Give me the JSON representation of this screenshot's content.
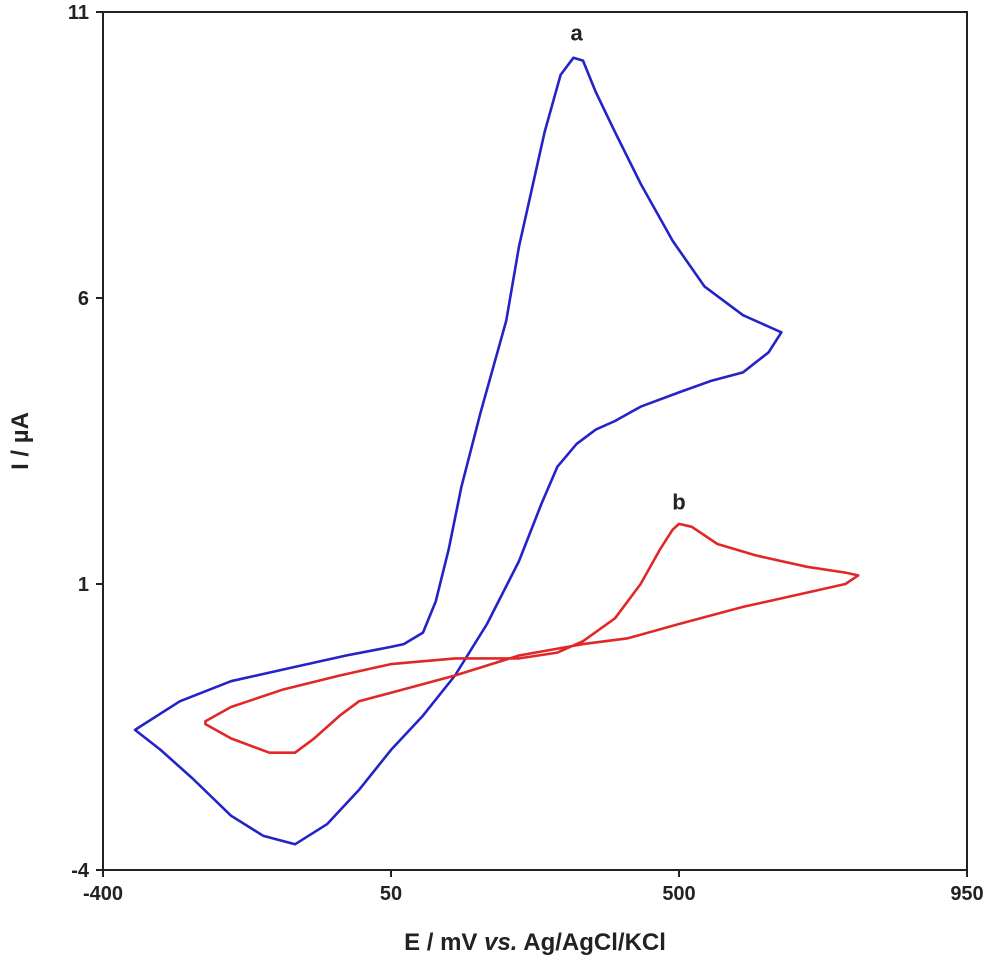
{
  "chart_data": {
    "type": "line",
    "xlabel": {
      "prefix": "E / mV ",
      "italic": "vs.",
      "suffix": " Ag/AgCl/KCl"
    },
    "ylabel": "I / µA",
    "xlim": [
      -400,
      950
    ],
    "ylim": [
      -4,
      11
    ],
    "xticks": [
      -400,
      50,
      500,
      950
    ],
    "yticks": [
      -4,
      1,
      6,
      11
    ],
    "grid": false,
    "legend": "none",
    "series": [
      {
        "label": "a",
        "color": "#2323c8",
        "points": [
          [
            -350,
            -1.55
          ],
          [
            -280,
            -1.05
          ],
          [
            -200,
            -0.7
          ],
          [
            -100,
            -0.45
          ],
          [
            -20,
            -0.25
          ],
          [
            50,
            -0.1
          ],
          [
            70,
            -0.05
          ],
          [
            100,
            0.15
          ],
          [
            120,
            0.7
          ],
          [
            140,
            1.6
          ],
          [
            160,
            2.7
          ],
          [
            190,
            4.0
          ],
          [
            215,
            5.0
          ],
          [
            230,
            5.6
          ],
          [
            250,
            6.9
          ],
          [
            270,
            7.9
          ],
          [
            290,
            8.9
          ],
          [
            315,
            9.9
          ],
          [
            335,
            10.2
          ],
          [
            350,
            10.15
          ],
          [
            370,
            9.6
          ],
          [
            400,
            8.9
          ],
          [
            440,
            8.0
          ],
          [
            490,
            7.0
          ],
          [
            540,
            6.2
          ],
          [
            600,
            5.7
          ],
          [
            650,
            5.45
          ],
          [
            660,
            5.4
          ],
          [
            640,
            5.05
          ],
          [
            600,
            4.7
          ],
          [
            550,
            4.55
          ],
          [
            500,
            4.35
          ],
          [
            440,
            4.1
          ],
          [
            400,
            3.85
          ],
          [
            370,
            3.7
          ],
          [
            340,
            3.45
          ],
          [
            310,
            3.05
          ],
          [
            285,
            2.4
          ],
          [
            250,
            1.4
          ],
          [
            200,
            0.3
          ],
          [
            150,
            -0.6
          ],
          [
            100,
            -1.3
          ],
          [
            50,
            -1.9
          ],
          [
            0,
            -2.6
          ],
          [
            -50,
            -3.2
          ],
          [
            -100,
            -3.55
          ],
          [
            -150,
            -3.4
          ],
          [
            -200,
            -3.05
          ],
          [
            -260,
            -2.4
          ],
          [
            -310,
            -1.9
          ],
          [
            -350,
            -1.55
          ]
        ]
      },
      {
        "label": "b",
        "color": "#e02828",
        "points": [
          [
            -240,
            -1.4
          ],
          [
            -200,
            -1.15
          ],
          [
            -120,
            -0.85
          ],
          [
            -30,
            -0.6
          ],
          [
            50,
            -0.4
          ],
          [
            150,
            -0.3
          ],
          [
            250,
            -0.3
          ],
          [
            310,
            -0.2
          ],
          [
            350,
            0.0
          ],
          [
            400,
            0.4
          ],
          [
            440,
            1.0
          ],
          [
            470,
            1.6
          ],
          [
            490,
            1.95
          ],
          [
            500,
            2.05
          ],
          [
            520,
            2.0
          ],
          [
            560,
            1.7
          ],
          [
            620,
            1.5
          ],
          [
            700,
            1.3
          ],
          [
            760,
            1.2
          ],
          [
            780,
            1.15
          ],
          [
            760,
            1.0
          ],
          [
            700,
            0.85
          ],
          [
            600,
            0.6
          ],
          [
            500,
            0.3
          ],
          [
            420,
            0.05
          ],
          [
            350,
            -0.05
          ],
          [
            250,
            -0.25
          ],
          [
            150,
            -0.6
          ],
          [
            50,
            -0.9
          ],
          [
            0,
            -1.05
          ],
          [
            -30,
            -1.3
          ],
          [
            -70,
            -1.7
          ],
          [
            -100,
            -1.95
          ],
          [
            -140,
            -1.95
          ],
          [
            -200,
            -1.7
          ],
          [
            -240,
            -1.45
          ],
          [
            -240,
            -1.4
          ]
        ]
      }
    ],
    "annotations": [
      {
        "text": "a",
        "x": 340,
        "y": 10.5
      },
      {
        "text": "b",
        "x": 500,
        "y": 2.3
      }
    ]
  }
}
